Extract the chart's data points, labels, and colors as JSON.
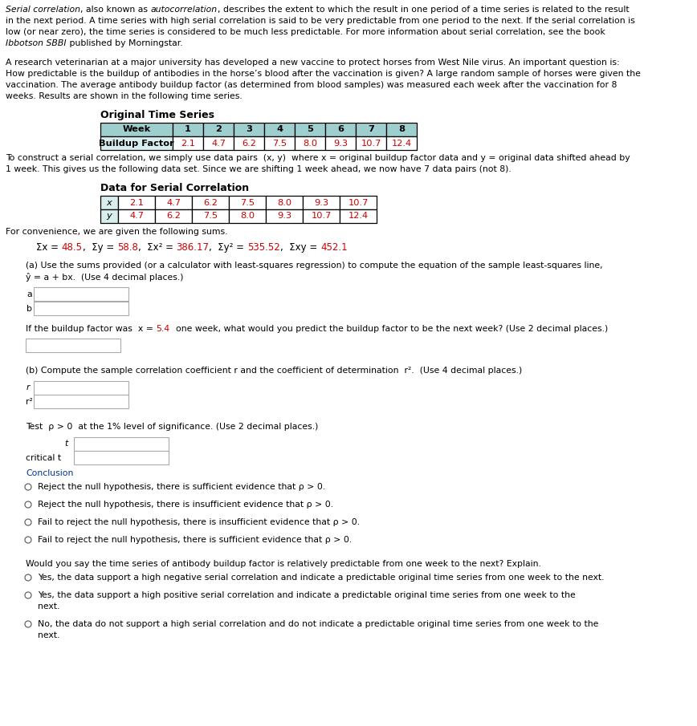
{
  "bg_color": "#ffffff",
  "red_color": "#cc0000",
  "blue_color": "#003399",
  "teal_header": "#9ecece",
  "teal_cell": "#d8eeee",
  "p1_line1_normal1": "Serial correlation",
  "p1_line1_normal2": ", also known as ",
  "p1_line1_italic": "autocorrelation",
  "p1_line1_normal3": ", describes the extent to which the result in one period of a time series is related to the result",
  "p1_line2": "in the next period. A time series with high serial correlation is said to be very predictable from one period to the next. If the serial correlation is",
  "p1_line3": "low (or near zero), the time series is considered to be much less predictable. For more information about serial correlation, see the book",
  "p1_line4_italic": "Ibbotson SBBI",
  "p1_line4_normal": " published by Morningstar.",
  "p2_line1": "A research veterinarian at a major university has developed a new vaccine to protect horses from West Nile virus. An important question is:",
  "p2_line2": "How predictable is the buildup of antibodies in the horse’s blood after the vaccination is given? A large random sample of horses were given the",
  "p2_line3": "vaccination. The average antibody buildup factor (as determined from blood samples) was measured each week after the vaccination for 8",
  "p2_line4": "weeks. Results are shown in the following time series.",
  "table1_title": "Original Time Series",
  "table1_col0": "Week",
  "table1_weeks": [
    "1",
    "2",
    "3",
    "4",
    "5",
    "6",
    "7",
    "8"
  ],
  "table1_row0": "Buildup Factor",
  "table1_values": [
    "2.1",
    "4.7",
    "6.2",
    "7.5",
    "8.0",
    "9.3",
    "10.7",
    "12.4"
  ],
  "p3_line1_a": "To construct a serial correlation, we simply use data pairs  (x, y)  where x = original buildup factor data and y = original data shifted ahead by",
  "p3_line2": "1 week. This gives us the following data set. Since we are shifting 1 week ahead, we now have 7 data pairs (not 8).",
  "table2_title": "Data for Serial Correlation",
  "table2_x": [
    "2.1",
    "4.7",
    "6.2",
    "7.5",
    "8.0",
    "9.3",
    "10.7"
  ],
  "table2_y": [
    "4.7",
    "6.2",
    "7.5",
    "8.0",
    "9.3",
    "10.7",
    "12.4"
  ],
  "p4": "For convenience, we are given the following sums.",
  "sums": [
    [
      "Σx = ",
      "#000000"
    ],
    [
      "48.5",
      "#cc0000"
    ],
    [
      ",  Σy = ",
      "#000000"
    ],
    [
      "58.8",
      "#cc0000"
    ],
    [
      ",  Σx² = ",
      "#000000"
    ],
    [
      "386.17",
      "#cc0000"
    ],
    [
      ",  Σy² = ",
      "#000000"
    ],
    [
      "535.52",
      "#cc0000"
    ],
    [
      ",  Σxy = ",
      "#000000"
    ],
    [
      "452.1",
      "#cc0000"
    ]
  ],
  "part_a1": "(a) Use the sums provided (or a calculator with least-squares regression) to compute the equation of the sample least-squares line,",
  "part_a2": "ŷ = a + bx.  (Use 4 decimal places.)",
  "pred_a": "If the buildup factor was  x = ",
  "pred_b": "5.4",
  "pred_c": "  one week, what would you predict the buildup factor to be the next week? (Use 2 decimal places.)",
  "part_b": "(b) Compute the sample correlation coefficient r and the coefficient of determination  r².  (Use 4 decimal places.)",
  "test_line": "Test  ρ > 0  at the 1% level of significance. (Use 2 decimal places.)",
  "conclusion": "Conclusion",
  "radio1": "Reject the null hypothesis, there is sufficient evidence that ρ > 0.",
  "radio2": "Reject the null hypothesis, there is insufficient evidence that ρ > 0.",
  "radio3": "Fail to reject the null hypothesis, there is insufficient evidence that ρ > 0.",
  "radio4": "Fail to reject the null hypothesis, there is sufficient evidence that ρ > 0.",
  "final_q": "Would you say the time series of antibody buildup factor is relatively predictable from one week to the next? Explain.",
  "final1": "Yes, the data support a high negative serial correlation and indicate a predictable original time series from one week to the next.",
  "final2a": "Yes, the data support a high positive serial correlation and indicate a predictable original time series from one week to the",
  "final2b": "next.",
  "final3a": "No, the data do not support a high serial correlation and do not indicate a predictable original time series from one week to the",
  "final3b": "next."
}
